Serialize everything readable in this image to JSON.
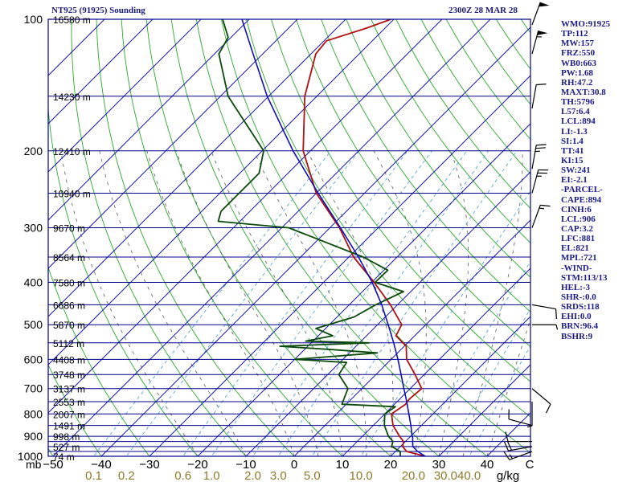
{
  "header": {
    "station_title": "NT925 (91925) Sounding",
    "valid_time": "2300Z 28 MAR 28"
  },
  "indices": [
    "WMO:91925",
    "TP:112",
    "MW:157",
    "FRZ:550",
    "WB0:663",
    "PW:1.68",
    "RH:47.2",
    "MAXT:30.8",
    "TH:5796",
    "L57:6.4",
    "LCL:894",
    "LI:-1.3",
    "SI:1.4",
    "TT:41",
    "KI:15",
    "SW:241",
    "EI:-2.1",
    "-PARCEL-",
    "CAPE:894",
    "CINH:6",
    "LCL:906",
    "CAP:3.2",
    "LFC:881",
    "EL:821",
    "MPL:721",
    "-WIND-",
    "STM:113/13",
    "HEL:-3",
    "SHR-:0.0",
    "SRDS:118",
    "EHI:0.0",
    "BRN:96.4",
    "BSHR:9"
  ],
  "colors": {
    "frame": "#00008b",
    "isobar": "#00008b",
    "isotherm": "#1c1c9c",
    "dry_adiabat": "#2aaa2a",
    "moist_adiabat": "#5a5a5a",
    "mixing_ratio": "#4a9ad8",
    "temperature": "#b01010",
    "dewpoint": "#0a4a0a",
    "parcel": "#1010b8",
    "wind": "#000000",
    "mixing_ratio_label": "#8a7a2a"
  },
  "chart_data": {
    "type": "skew-t",
    "y_axis": {
      "scale": "log-pressure",
      "unit": "mb",
      "range": [
        1000,
        100
      ],
      "pressure_labels": [
        100,
        200,
        300,
        400,
        500,
        600,
        700,
        800,
        900,
        1000
      ],
      "isobars": [
        1000,
        975,
        950,
        925,
        900,
        850,
        800,
        750,
        700,
        650,
        600,
        550,
        500,
        450,
        400,
        350,
        300,
        250,
        200,
        150,
        100
      ],
      "height_labels": [
        {
          "p": 100,
          "label": "16580 m"
        },
        {
          "p": 150,
          "label": "14230 m"
        },
        {
          "p": 200,
          "label": "12410 m"
        },
        {
          "p": 250,
          "label": "10940 m"
        },
        {
          "p": 300,
          "label": "9670 m"
        },
        {
          "p": 350,
          "label": "8564 m"
        },
        {
          "p": 400,
          "label": "7580 m"
        },
        {
          "p": 450,
          "label": "6686 m"
        },
        {
          "p": 500,
          "label": "5870 m"
        },
        {
          "p": 550,
          "label": "5112 m"
        },
        {
          "p": 600,
          "label": "4408 m"
        },
        {
          "p": 650,
          "label": "3748 m"
        },
        {
          "p": 700,
          "label": "3137 m"
        },
        {
          "p": 750,
          "label": "2553 m"
        },
        {
          "p": 800,
          "label": "2007 m"
        },
        {
          "p": 850,
          "label": "1491 m"
        },
        {
          "p": 900,
          "label": "998 m"
        },
        {
          "p": 950,
          "label": "527 m"
        },
        {
          "p": 1000,
          "label": "74 m"
        }
      ]
    },
    "x_axis": {
      "unit": "C",
      "range": [
        -50,
        50
      ],
      "axis_label": "mb",
      "ticks": [
        -50,
        -40,
        -30,
        -20,
        -10,
        0,
        10,
        20,
        30,
        40
      ],
      "tick_labels": [
        "−50",
        "−40",
        "−30",
        "−20",
        "−10",
        "0",
        "10",
        "20",
        "30",
        "40"
      ],
      "end_label": "C"
    },
    "mixing_ratio_axis": {
      "unit": "g/kg",
      "values": [
        0.1,
        0.2,
        0.6,
        1.0,
        2.0,
        3.0,
        5.0,
        10.0,
        20.0,
        30.0,
        40.0
      ],
      "labels": [
        "0.1",
        "0.2",
        "0.6",
        "1.0",
        "2.0",
        "3.0",
        "5.0",
        "10.0",
        "20.0",
        "30.0",
        "40.0"
      ],
      "unit_label": "g/kg"
    },
    "series": [
      {
        "key": "temperature",
        "points": [
          [
            1000,
            27.2
          ],
          [
            975,
            22.3
          ],
          [
            950,
            20.5
          ],
          [
            925,
            19.6
          ],
          [
            900,
            17.7
          ],
          [
            850,
            14.1
          ],
          [
            800,
            11.4
          ],
          [
            760,
            12.3
          ],
          [
            740,
            12.0
          ],
          [
            700,
            12.4
          ],
          [
            650,
            8.1
          ],
          [
            600,
            3.2
          ],
          [
            560,
            0.4
          ],
          [
            530,
            -3.9
          ],
          [
            500,
            -5.0
          ],
          [
            450,
            -11.5
          ],
          [
            400,
            -19.5
          ],
          [
            350,
            -29.0
          ],
          [
            300,
            -38.0
          ],
          [
            250,
            -50.0
          ],
          [
            200,
            -61.5
          ],
          [
            150,
            -72.5
          ],
          [
            120,
            -79.0
          ],
          [
            112,
            -79.5
          ],
          [
            105,
            -74.0
          ],
          [
            100,
            -70.6
          ]
        ]
      },
      {
        "key": "dewpoint",
        "points": [
          [
            1000,
            22.0
          ],
          [
            975,
            21.0
          ],
          [
            950,
            18.2
          ],
          [
            925,
            17.4
          ],
          [
            900,
            15.4
          ],
          [
            850,
            12.3
          ],
          [
            800,
            10.0
          ],
          [
            770,
            10.7
          ],
          [
            760,
            -0.9
          ],
          [
            700,
            -2.9
          ],
          [
            650,
            -7.7
          ],
          [
            610,
            -8.6
          ],
          [
            600,
            -19.9
          ],
          [
            580,
            -4.2
          ],
          [
            570,
            -14.3
          ],
          [
            560,
            -25.8
          ],
          [
            550,
            -8.0
          ],
          [
            545,
            -21.5
          ],
          [
            530,
            -17.0
          ],
          [
            510,
            -22.0
          ],
          [
            480,
            -16.5
          ],
          [
            450,
            -14.5
          ],
          [
            420,
            -11.5
          ],
          [
            400,
            -19.3
          ],
          [
            375,
            -19.2
          ],
          [
            350,
            -27.0
          ],
          [
            300,
            -48.5
          ],
          [
            290,
            -64.5
          ],
          [
            275,
            -66.0
          ],
          [
            250,
            -66.0
          ],
          [
            225,
            -66.0
          ],
          [
            200,
            -69.7
          ],
          [
            150,
            -88.4
          ],
          [
            120,
            -99.1
          ],
          [
            110,
            -100.6
          ],
          [
            100,
            -105.5
          ]
        ]
      },
      {
        "key": "parcel",
        "points": [
          [
            1000,
            27.2
          ],
          [
            975,
            24.6
          ],
          [
            950,
            22.6
          ],
          [
            925,
            21.5
          ],
          [
            906,
            20.7
          ],
          [
            900,
            20.3
          ],
          [
            850,
            17.8
          ],
          [
            800,
            15.0
          ],
          [
            750,
            12.0
          ],
          [
            700,
            8.7
          ],
          [
            650,
            5.2
          ],
          [
            600,
            1.4
          ],
          [
            550,
            -2.9
          ],
          [
            500,
            -7.8
          ],
          [
            450,
            -13.3
          ],
          [
            400,
            -19.9
          ],
          [
            350,
            -28.0
          ],
          [
            300,
            -37.8
          ],
          [
            250,
            -49.6
          ],
          [
            200,
            -63.6
          ],
          [
            150,
            -80.3
          ],
          [
            120,
            -92.0
          ],
          [
            100,
            -101.5
          ]
        ]
      }
    ],
    "wind_barbs": [
      {
        "p": 975,
        "dir": 250,
        "kt": 15
      },
      {
        "p": 950,
        "dir": 260,
        "kt": 20
      },
      {
        "p": 925,
        "dir": 270,
        "kt": 10
      },
      {
        "p": 850,
        "dir": 285,
        "kt": 10
      },
      {
        "p": 750,
        "dir": 180,
        "kt": 5
      },
      {
        "p": 700,
        "dir": 130,
        "kt": 10
      },
      {
        "p": 500,
        "dir": 90,
        "kt": 5
      },
      {
        "p": 450,
        "dir": 100,
        "kt": 10
      },
      {
        "p": 300,
        "dir": 20,
        "kt": 15
      },
      {
        "p": 250,
        "dir": 15,
        "kt": 25
      },
      {
        "p": 220,
        "dir": 10,
        "kt": 25
      },
      {
        "p": 160,
        "dir": 10,
        "kt": 10
      },
      {
        "p": 120,
        "dir": 15,
        "kt": 55
      },
      {
        "p": 103,
        "dir": 20,
        "kt": 50
      }
    ],
    "grid": true
  }
}
